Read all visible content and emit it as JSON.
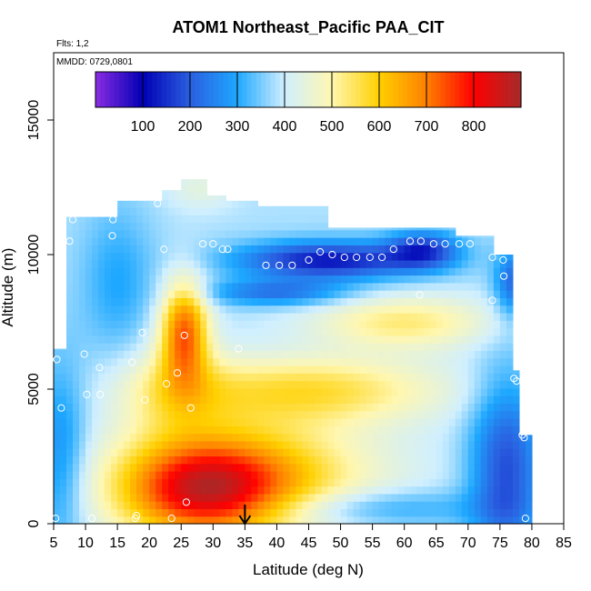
{
  "chart_data": {
    "type": "heatmap",
    "title": "ATOM1 Northeast_Pacific PAA_CIT",
    "note_flights": "Flts: 1,2",
    "note_dates": "MMDD: 0729,0801",
    "xlabel": "Latitude (deg N)",
    "ylabel": "Altitude (m)",
    "xlim": [
      5,
      85
    ],
    "ylim": [
      0,
      17500
    ],
    "x_ticks": [
      "5",
      "10",
      "15",
      "20",
      "25",
      "30",
      "35",
      "40",
      "45",
      "50",
      "55",
      "60",
      "65",
      "70",
      "75",
      "80",
      "85"
    ],
    "y_ticks": [
      "0",
      "5000",
      "10000",
      "15000"
    ],
    "colorbar": {
      "range": [
        0,
        900
      ],
      "ticks": [
        "100",
        "200",
        "300",
        "400",
        "500",
        "600",
        "700",
        "800"
      ],
      "colors": [
        "#8a2be2",
        "#0000b4",
        "#2a5fe0",
        "#1ea8ff",
        "#d0efff",
        "#fff7b0",
        "#ffd000",
        "#ff8000",
        "#ff0000",
        "#a52a2a"
      ]
    },
    "marker_latitude": 35,
    "grid": false,
    "features": [
      {
        "region": "low-altitude plume",
        "lat_range": [
          15,
          45
        ],
        "alt_range": [
          0,
          3000
        ],
        "level": 720
      },
      {
        "region": "mid-altitude plume",
        "lat_range": [
          23,
          28
        ],
        "alt_range": [
          6000,
          8500
        ],
        "level": 760
      },
      {
        "region": "upper minimum",
        "lat_range": [
          37,
          65
        ],
        "alt_range": [
          9000,
          10500
        ],
        "level": 130
      }
    ],
    "samples": [
      [
        5.3,
        200
      ],
      [
        5.5,
        6100
      ],
      [
        6.2,
        4300
      ],
      [
        7.5,
        10500
      ],
      [
        8.0,
        11300
      ],
      [
        9.8,
        6300
      ],
      [
        10.2,
        4800
      ],
      [
        11.0,
        200
      ],
      [
        12.2,
        5800
      ],
      [
        12.3,
        4800
      ],
      [
        14.2,
        10700
      ],
      [
        14.3,
        11300
      ],
      [
        17.3,
        6000
      ],
      [
        17.8,
        200
      ],
      [
        18.0,
        300
      ],
      [
        18.9,
        7100
      ],
      [
        19.3,
        4600
      ],
      [
        21.3,
        11900
      ],
      [
        22.3,
        10200
      ],
      [
        22.7,
        5200
      ],
      [
        23.5,
        200
      ],
      [
        24.4,
        5600
      ],
      [
        25.5,
        7000
      ],
      [
        25.8,
        800
      ],
      [
        26.5,
        4300
      ],
      [
        28.4,
        10400
      ],
      [
        30.0,
        10400
      ],
      [
        31.5,
        10200
      ],
      [
        32.3,
        10200
      ],
      [
        34.0,
        6500
      ],
      [
        38.3,
        9600
      ],
      [
        40.4,
        9600
      ],
      [
        42.4,
        9600
      ],
      [
        45.0,
        9800
      ],
      [
        46.8,
        10100
      ],
      [
        48.7,
        10000
      ],
      [
        50.6,
        9900
      ],
      [
        52.5,
        9900
      ],
      [
        54.6,
        9900
      ],
      [
        56.5,
        9900
      ],
      [
        58.3,
        10200
      ],
      [
        60.9,
        10500
      ],
      [
        62.4,
        8500
      ],
      [
        62.6,
        10500
      ],
      [
        64.6,
        10400
      ],
      [
        66.4,
        10400
      ],
      [
        67.2,
        11300
      ],
      [
        68.6,
        10400
      ],
      [
        70.3,
        10400
      ],
      [
        73.8,
        8300
      ],
      [
        73.8,
        9900
      ],
      [
        75.5,
        9800
      ],
      [
        75.6,
        9200
      ],
      [
        77.2,
        5400
      ],
      [
        77.6,
        5300
      ],
      [
        78.5,
        3300
      ],
      [
        78.8,
        3200
      ],
      [
        79.0,
        200
      ]
    ]
  }
}
